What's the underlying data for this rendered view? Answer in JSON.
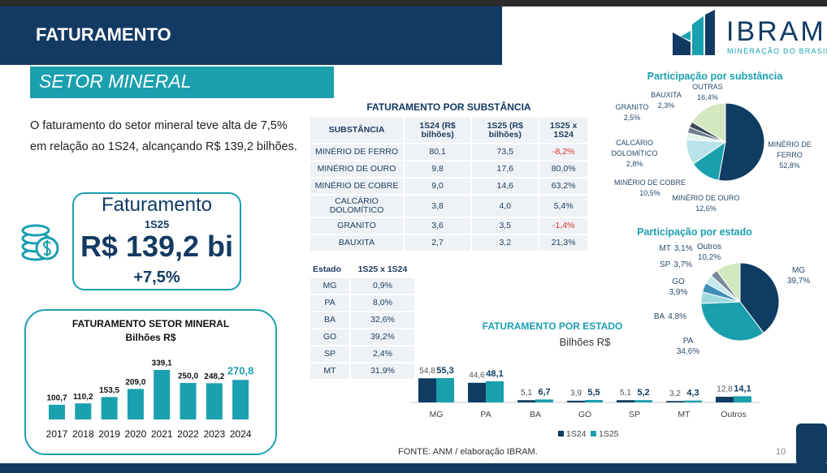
{
  "header": {
    "title": "FATURAMENTO",
    "section": "SETOR MINERAL"
  },
  "logo": {
    "name": "IBRAM",
    "tagline": "MINERAÇÃO DO BRASIL"
  },
  "summary": "O faturamento do setor mineral teve alta de 7,5% em relação ao 1S24, alcançando R$ 139,2 bilhões.",
  "highlight": {
    "title": "Faturamento",
    "period": "1S25",
    "value": "R$ 139,2 bi",
    "change": "+7,5%"
  },
  "substance_table": {
    "title": "FATURAMENTO POR SUBSTÂNCIA",
    "columns": [
      "SUBSTÂNCIA",
      "1S24 (R$ bilhões)",
      "1S25 (R$ bilhões)",
      "1S25 x 1S24"
    ],
    "rows": [
      [
        "MINÉRIO DE FERRO",
        "80,1",
        "73,5",
        "-8,2%"
      ],
      [
        "MINÉRIO DE OURO",
        "9,8",
        "17,6",
        "80,0%"
      ],
      [
        "MINÉRIO DE COBRE",
        "9,0",
        "14,6",
        "63,2%"
      ],
      [
        "CALCÁRIO DOLOMÍTICO",
        "3,8",
        "4,0",
        "5,4%"
      ],
      [
        "GRANITO",
        "3,6",
        "3,5",
        "-1,4%"
      ],
      [
        "BAUXITA",
        "2,7",
        "3,2",
        "21,3%"
      ]
    ]
  },
  "state_table": {
    "columns": [
      "Estado",
      "1S25 x 1S24"
    ],
    "rows": [
      [
        "MG",
        "0,9%"
      ],
      [
        "PA",
        "8,0%"
      ],
      [
        "BA",
        "32,6%"
      ],
      [
        "GO",
        "39,2%"
      ],
      [
        "SP",
        "2,4%"
      ],
      [
        "MT",
        "31,9%"
      ]
    ]
  },
  "footer": {
    "source": "FONTE: ANM / elaboração IBRAM.",
    "page": "10"
  },
  "chart_data": [
    {
      "type": "bar",
      "title": "FATURAMENTO SETOR MINERAL",
      "subtitle": "Bilhões R$",
      "categories": [
        "2017",
        "2018",
        "2019",
        "2020",
        "2021",
        "2022",
        "2023",
        "2024"
      ],
      "values": [
        100.7,
        110.2,
        153.5,
        209.0,
        339.1,
        250.0,
        248.2,
        270.8
      ],
      "value_labels": [
        "100,7",
        "110,2",
        "153,5",
        "209,0",
        "339,1",
        "250,0",
        "248,2",
        "270,8"
      ],
      "color": "#1ba0b0"
    },
    {
      "type": "pie",
      "title": "Participação por substância",
      "categories": [
        "MINÉRIO DE FERRO",
        "MINÉRIO DE OURO",
        "MINÉRIO DE COBRE",
        "CALCÁRIO DOLOMÍTICO",
        "GRANITO",
        "BAUXITA",
        "OUTRAS"
      ],
      "values": [
        52.8,
        12.6,
        10.5,
        2.8,
        2.5,
        2.3,
        16.4
      ],
      "value_labels": [
        "52,8%",
        "12,6%",
        "10,5%",
        "2,8%",
        "2,5%",
        "2,3%",
        "16,4%"
      ],
      "colors": [
        "#0e3c62",
        "#1aa0ad",
        "#b9e3e8",
        "#e6f2ec",
        "#6f7f8c",
        "#3d4a56",
        "#d3e8c0"
      ]
    },
    {
      "type": "pie",
      "title": "Participação por estado",
      "categories": [
        "MG",
        "PA",
        "BA",
        "GO",
        "SP",
        "MT",
        "Outros"
      ],
      "values": [
        39.7,
        34.6,
        4.8,
        3.9,
        3.7,
        3.1,
        10.2
      ],
      "value_labels": [
        "39,7%",
        "34,6%",
        "4,8%",
        "3,9%",
        "3,7%",
        "3,1%",
        "10,2%"
      ],
      "colors": [
        "#0e3c62",
        "#1aa0ad",
        "#9fd8e0",
        "#3f8fb8",
        "#c6e8ec",
        "#7a8a99",
        "#d3e8c0"
      ]
    },
    {
      "type": "grouped-bar",
      "title": "FATURAMENTO POR ESTADO",
      "subtitle": "Bilhões R$",
      "categories": [
        "MG",
        "PA",
        "BA",
        "GO",
        "SP",
        "MT",
        "Outros"
      ],
      "series": [
        {
          "name": "1S24",
          "color": "#0e3c62",
          "values": [
            54.8,
            44.6,
            5.1,
            3.9,
            5.1,
            3.2,
            12.8
          ],
          "value_labels": [
            "54,8",
            "44,6",
            "5,1",
            "3,9",
            "5,1",
            "3,2",
            "12,8"
          ]
        },
        {
          "name": "1S25",
          "color": "#1aa0ad",
          "values": [
            55.3,
            48.1,
            6.7,
            5.5,
            5.2,
            4.3,
            14.1
          ],
          "value_labels": [
            "55,3",
            "48,1",
            "6,7",
            "5,5",
            "5,2",
            "4,3",
            "14,1"
          ]
        }
      ]
    }
  ]
}
